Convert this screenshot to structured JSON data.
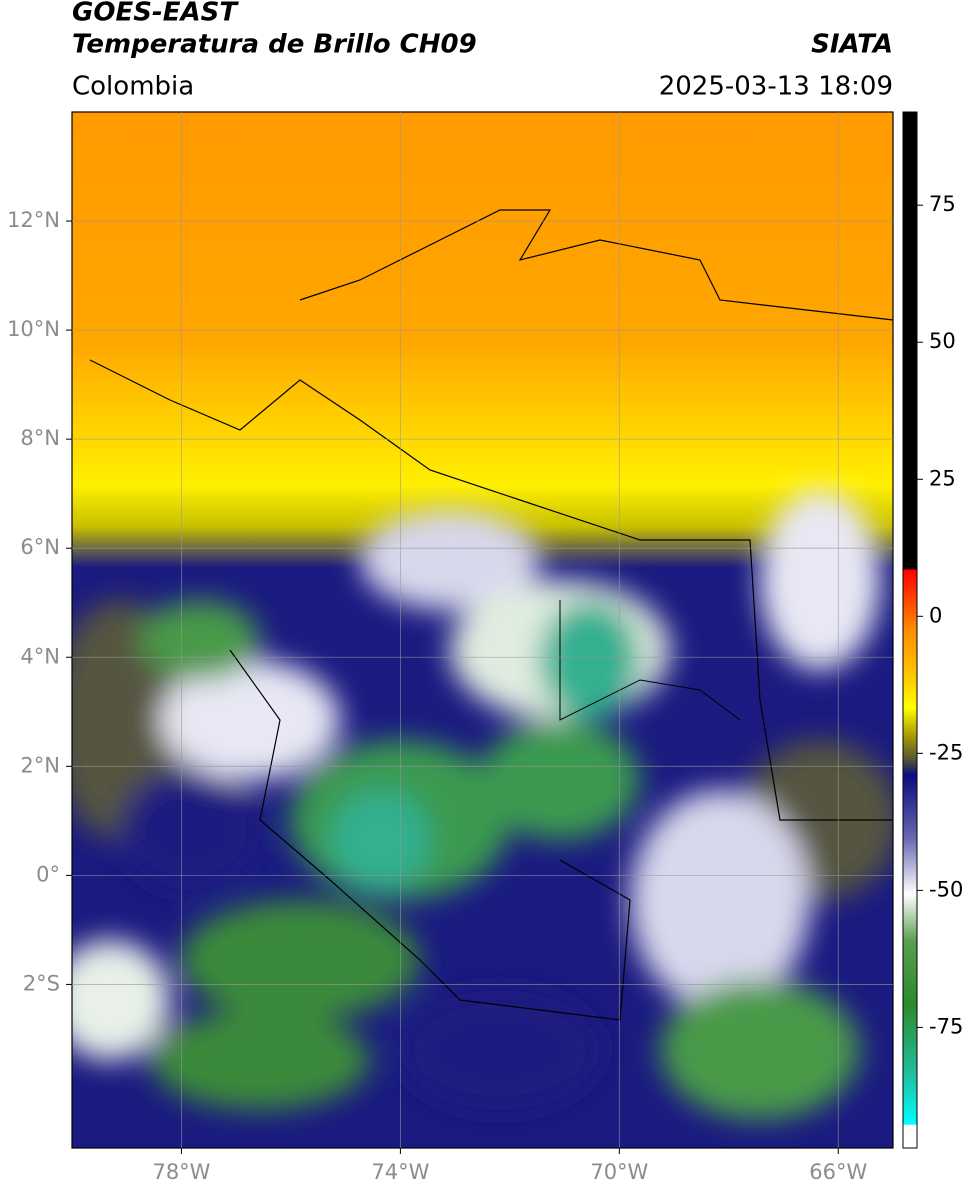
{
  "header": {
    "satellite": "GOES-EAST",
    "product": "Temperatura de Brillo CH09",
    "source": "SIATA",
    "region": "Colombia",
    "datetime": "2025-03-13 18:09"
  },
  "map": {
    "xlim": [
      -80,
      -65
    ],
    "ylim": [
      -5,
      14
    ],
    "xticks": [
      {
        "value": -78,
        "label": "78°W"
      },
      {
        "value": -74,
        "label": "74°W"
      },
      {
        "value": -70,
        "label": "70°W"
      },
      {
        "value": -66,
        "label": "66°W"
      }
    ],
    "yticks": [
      {
        "value": 12,
        "label": "12°N"
      },
      {
        "value": 10,
        "label": "10°N"
      },
      {
        "value": 8,
        "label": "8°N"
      },
      {
        "value": 6,
        "label": "6°N"
      },
      {
        "value": 4,
        "label": "4°N"
      },
      {
        "value": 2,
        "label": "2°N"
      },
      {
        "value": 0,
        "label": "0°"
      },
      {
        "value": -2,
        "label": "2°S"
      }
    ]
  },
  "colorbar": {
    "lim": [
      -97,
      92
    ],
    "ticks": [
      75,
      50,
      25,
      0,
      -25,
      -50,
      -75
    ]
  }
}
